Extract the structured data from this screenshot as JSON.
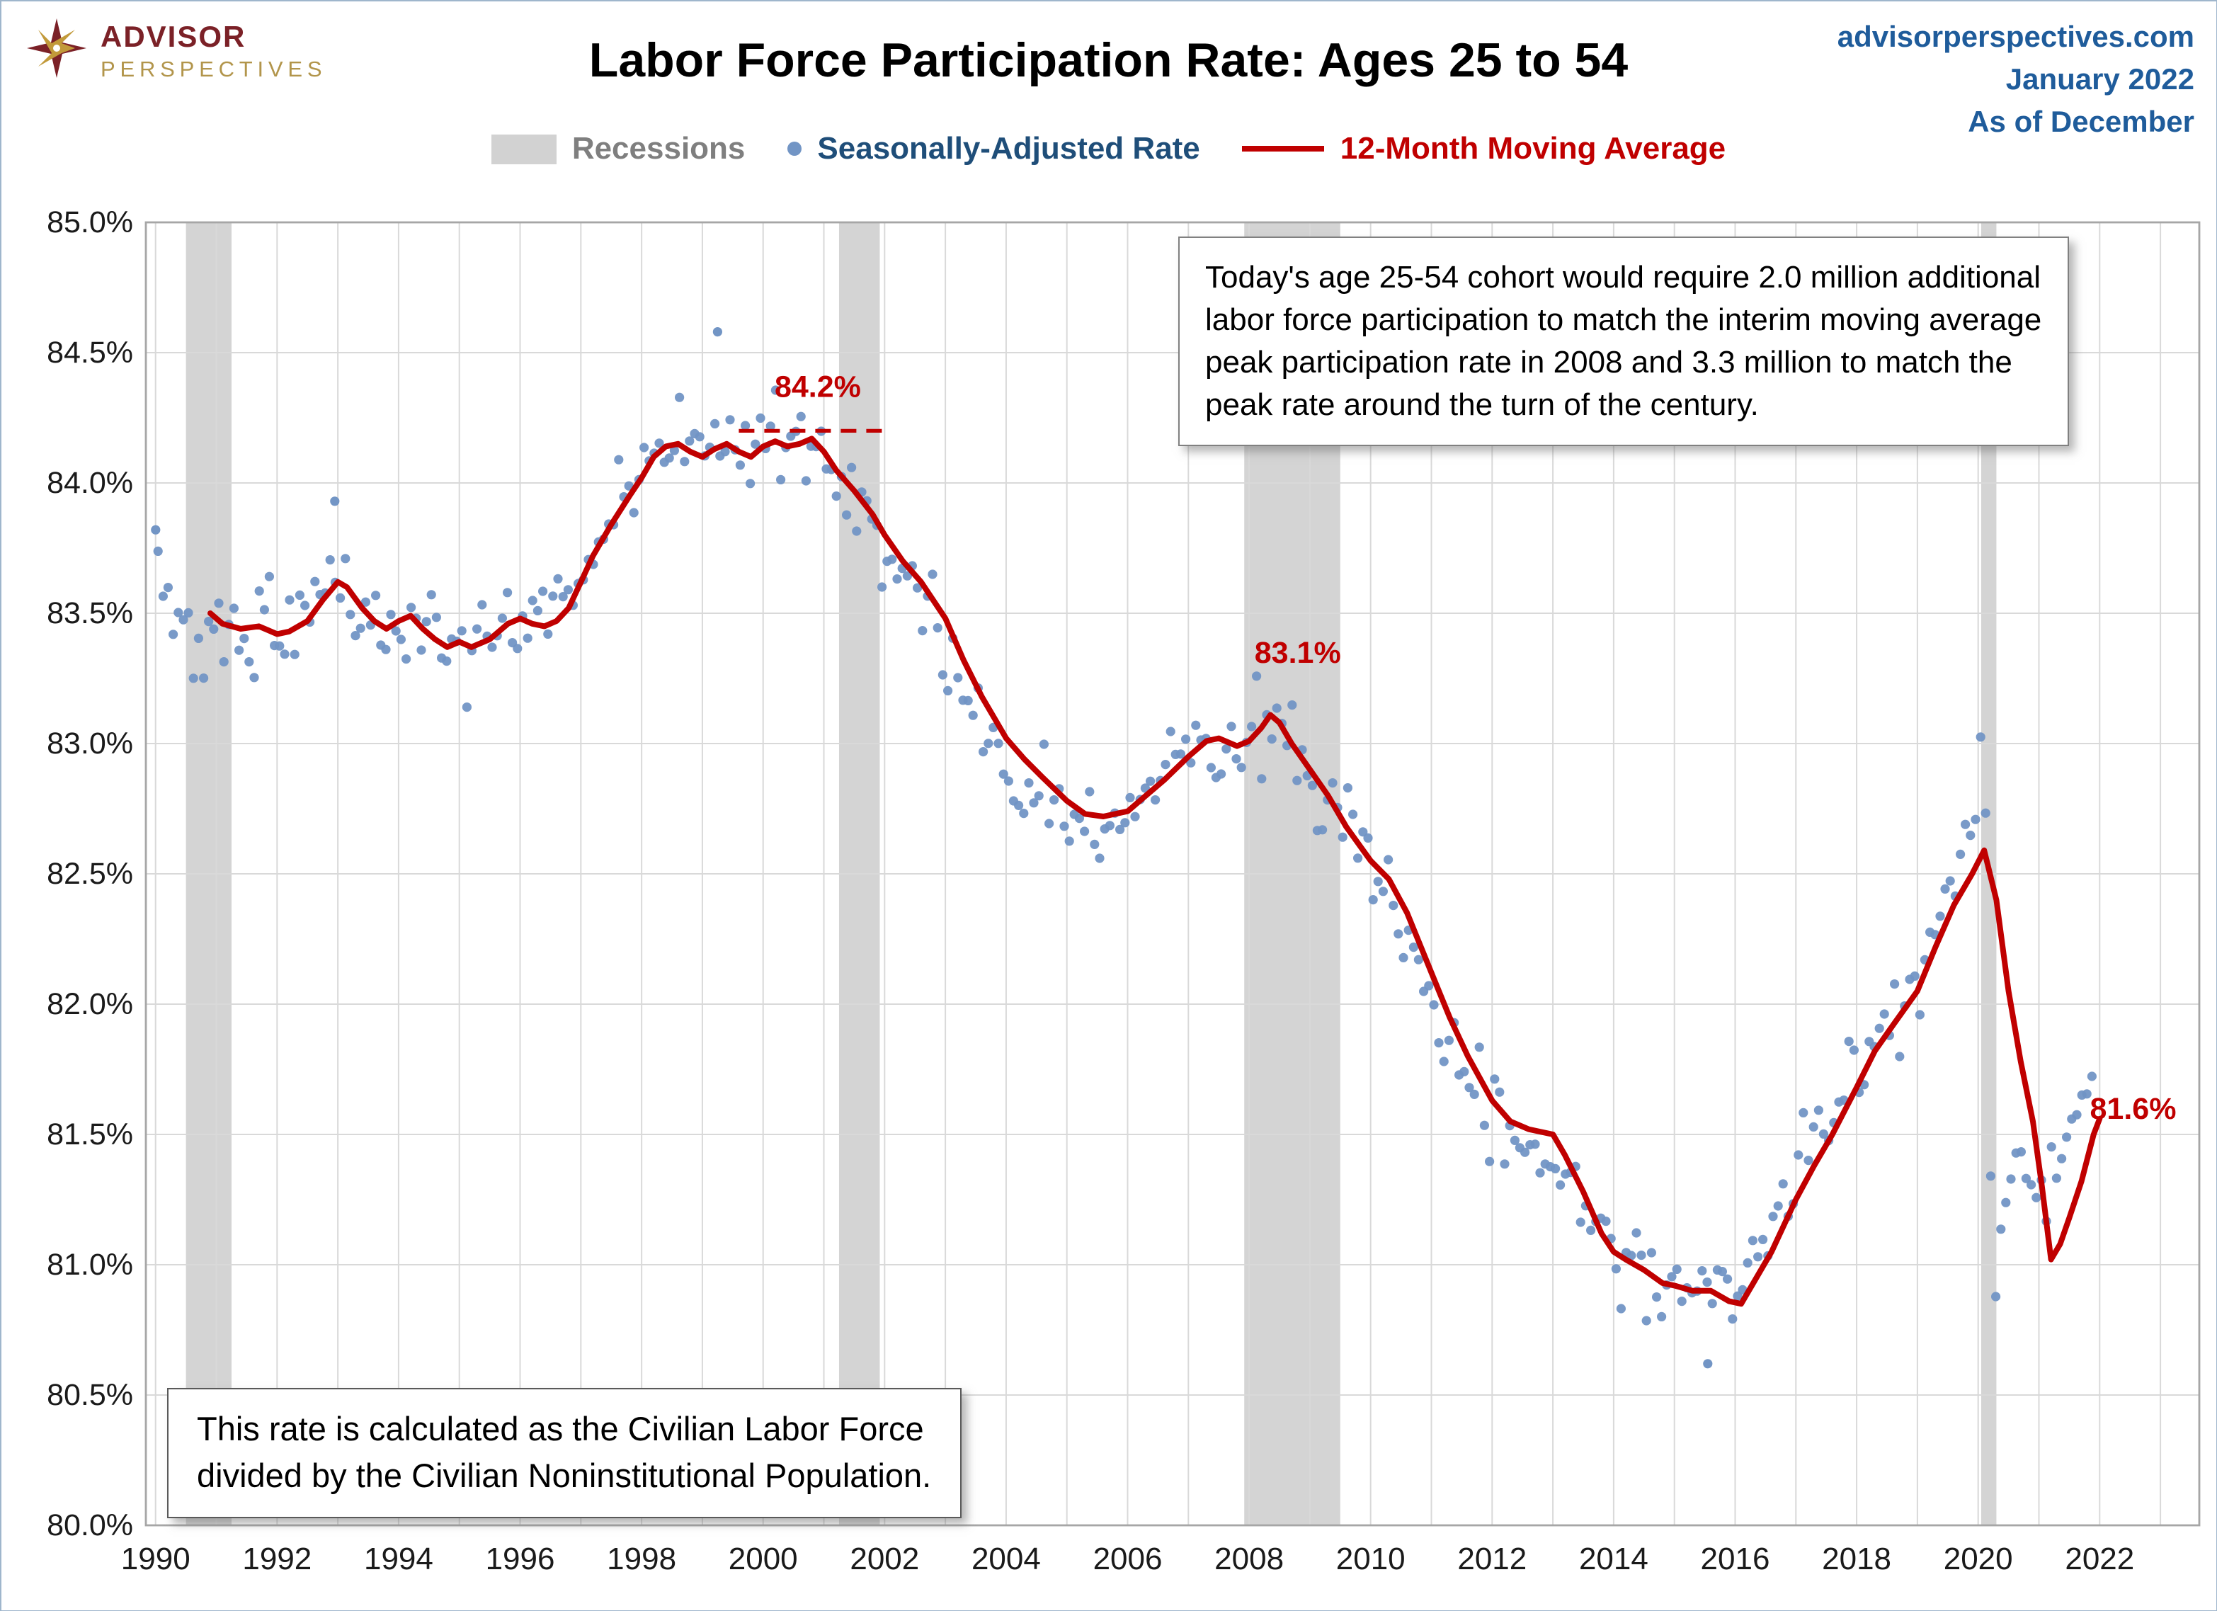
{
  "header": {
    "brand_top": "ADVISOR",
    "brand_bottom": "PERSPECTIVES",
    "title": "Labor Force Participation Rate: Ages 25 to 54",
    "site": "advisorperspectives.com",
    "issue_date": "January 2022",
    "as_of": "As of December"
  },
  "legend": [
    {
      "label": "Recessions"
    },
    {
      "label": "Seasonally-Adjusted Rate"
    },
    {
      "label": "12-Month Moving Average"
    }
  ],
  "callouts": {
    "note_top": "Today's age 25-54 cohort would require 2.0 million additional\nlabor force participation to match the interim moving average\npeak participation rate in 2008 and 3.3 million to match the\npeak rate around the turn of the century.",
    "note_bottom": "This rate is calculated as the Civilian Labor Force\ndivided by the Civilian Noninstitutional Population."
  },
  "chart_data": {
    "type": "line+scatter",
    "title": "Labor Force Participation Rate: Ages 25 to 54",
    "x_range": [
      1989.84,
      2023.64
    ],
    "y_range": [
      80.0,
      85.0
    ],
    "x_ticks": [
      1990,
      1992,
      1994,
      1996,
      1998,
      2000,
      2002,
      2004,
      2006,
      2008,
      2010,
      2012,
      2014,
      2016,
      2018,
      2020,
      2022
    ],
    "x_tick_labels": [
      "1990",
      "1992",
      "1994",
      "1996",
      "1998",
      "2000",
      "2002",
      "2004",
      "2006",
      "2008",
      "2010",
      "2012",
      "2014",
      "2016",
      "2018",
      "2020",
      "2022"
    ],
    "y_ticks": [
      80.0,
      80.5,
      81.0,
      81.5,
      82.0,
      82.5,
      83.0,
      83.5,
      84.0,
      84.5,
      85.0
    ],
    "y_tick_labels": [
      "80.0%",
      "80.5%",
      "81.0%",
      "81.5%",
      "82.0%",
      "82.5%",
      "83.0%",
      "83.5%",
      "84.0%",
      "84.5%",
      "85.0%"
    ],
    "grid_years": [
      1990,
      1991,
      1992,
      1993,
      1994,
      1995,
      1996,
      1997,
      1998,
      1999,
      2000,
      2001,
      2002,
      2003,
      2004,
      2005,
      2006,
      2007,
      2008,
      2009,
      2010,
      2011,
      2012,
      2013,
      2014,
      2015,
      2016,
      2017,
      2018,
      2019,
      2020,
      2021,
      2022,
      2023
    ],
    "recessions": [
      [
        1990.5,
        1991.25
      ],
      [
        2001.25,
        2001.92
      ],
      [
        2007.92,
        2009.5
      ],
      [
        2020.05,
        2020.3
      ]
    ],
    "ma_series": [
      [
        1990.9,
        83.5
      ],
      [
        1991.1,
        83.46
      ],
      [
        1991.4,
        83.44
      ],
      [
        1991.7,
        83.45
      ],
      [
        1992.0,
        83.42
      ],
      [
        1992.2,
        83.43
      ],
      [
        1992.5,
        83.47
      ],
      [
        1992.75,
        83.55
      ],
      [
        1993.0,
        83.62
      ],
      [
        1993.15,
        83.6
      ],
      [
        1993.4,
        83.52
      ],
      [
        1993.6,
        83.47
      ],
      [
        1993.8,
        83.44
      ],
      [
        1994.0,
        83.47
      ],
      [
        1994.2,
        83.49
      ],
      [
        1994.4,
        83.44
      ],
      [
        1994.6,
        83.4
      ],
      [
        1994.8,
        83.37
      ],
      [
        1995.0,
        83.39
      ],
      [
        1995.2,
        83.37
      ],
      [
        1995.5,
        83.4
      ],
      [
        1995.8,
        83.46
      ],
      [
        1996.0,
        83.48
      ],
      [
        1996.2,
        83.46
      ],
      [
        1996.4,
        83.45
      ],
      [
        1996.6,
        83.47
      ],
      [
        1996.8,
        83.52
      ],
      [
        1997.0,
        83.62
      ],
      [
        1997.2,
        83.72
      ],
      [
        1997.5,
        83.84
      ],
      [
        1997.8,
        83.95
      ],
      [
        1998.0,
        84.02
      ],
      [
        1998.2,
        84.1
      ],
      [
        1998.4,
        84.14
      ],
      [
        1998.6,
        84.15
      ],
      [
        1998.8,
        84.12
      ],
      [
        1999.0,
        84.1
      ],
      [
        1999.2,
        84.13
      ],
      [
        1999.4,
        84.15
      ],
      [
        1999.6,
        84.12
      ],
      [
        1999.8,
        84.1
      ],
      [
        2000.0,
        84.14
      ],
      [
        2000.2,
        84.16
      ],
      [
        2000.4,
        84.14
      ],
      [
        2000.6,
        84.15
      ],
      [
        2000.8,
        84.17
      ],
      [
        2001.0,
        84.12
      ],
      [
        2001.2,
        84.05
      ],
      [
        2001.5,
        83.97
      ],
      [
        2001.8,
        83.88
      ],
      [
        2002.0,
        83.8
      ],
      [
        2002.3,
        83.7
      ],
      [
        2002.6,
        83.62
      ],
      [
        2003.0,
        83.48
      ],
      [
        2003.3,
        83.32
      ],
      [
        2003.6,
        83.18
      ],
      [
        2004.0,
        83.02
      ],
      [
        2004.3,
        82.94
      ],
      [
        2004.6,
        82.87
      ],
      [
        2005.0,
        82.78
      ],
      [
        2005.3,
        82.73
      ],
      [
        2005.6,
        82.72
      ],
      [
        2006.0,
        82.74
      ],
      [
        2006.3,
        82.8
      ],
      [
        2006.6,
        82.86
      ],
      [
        2007.0,
        82.95
      ],
      [
        2007.3,
        83.01
      ],
      [
        2007.5,
        83.02
      ],
      [
        2007.8,
        82.99
      ],
      [
        2008.0,
        83.01
      ],
      [
        2008.2,
        83.06
      ],
      [
        2008.35,
        83.11
      ],
      [
        2008.5,
        83.08
      ],
      [
        2008.7,
        83.0
      ],
      [
        2009.0,
        82.9
      ],
      [
        2009.3,
        82.8
      ],
      [
        2009.6,
        82.68
      ],
      [
        2010.0,
        82.55
      ],
      [
        2010.3,
        82.48
      ],
      [
        2010.6,
        82.35
      ],
      [
        2011.0,
        82.12
      ],
      [
        2011.3,
        81.95
      ],
      [
        2011.6,
        81.8
      ],
      [
        2012.0,
        81.63
      ],
      [
        2012.3,
        81.55
      ],
      [
        2012.6,
        81.52
      ],
      [
        2013.0,
        81.5
      ],
      [
        2013.2,
        81.42
      ],
      [
        2013.5,
        81.28
      ],
      [
        2013.8,
        81.12
      ],
      [
        2014.0,
        81.05
      ],
      [
        2014.2,
        81.02
      ],
      [
        2014.5,
        80.98
      ],
      [
        2014.8,
        80.93
      ],
      [
        2015.0,
        80.92
      ],
      [
        2015.3,
        80.9
      ],
      [
        2015.6,
        80.9
      ],
      [
        2015.9,
        80.86
      ],
      [
        2016.1,
        80.85
      ],
      [
        2016.3,
        80.93
      ],
      [
        2016.6,
        81.05
      ],
      [
        2017.0,
        81.25
      ],
      [
        2017.3,
        81.38
      ],
      [
        2017.6,
        81.5
      ],
      [
        2018.0,
        81.68
      ],
      [
        2018.3,
        81.82
      ],
      [
        2018.6,
        81.92
      ],
      [
        2019.0,
        82.05
      ],
      [
        2019.3,
        82.22
      ],
      [
        2019.6,
        82.38
      ],
      [
        2019.9,
        82.5
      ],
      [
        2020.1,
        82.59
      ],
      [
        2020.3,
        82.4
      ],
      [
        2020.5,
        82.05
      ],
      [
        2020.7,
        81.78
      ],
      [
        2020.9,
        81.55
      ],
      [
        2021.05,
        81.3
      ],
      [
        2021.2,
        81.02
      ],
      [
        2021.35,
        81.08
      ],
      [
        2021.5,
        81.18
      ],
      [
        2021.7,
        81.32
      ],
      [
        2021.9,
        81.5
      ],
      [
        2022.0,
        81.56
      ]
    ],
    "dot_trend": [
      [
        1990.0,
        83.65
      ],
      [
        1990.2,
        83.55
      ],
      [
        1990.5,
        83.45
      ],
      [
        1991.0,
        83.42
      ],
      [
        1992.0,
        83.44
      ],
      [
        1992.6,
        83.55
      ],
      [
        1992.9,
        83.62
      ],
      [
        1993.3,
        83.48
      ],
      [
        1993.7,
        83.44
      ],
      [
        1994.1,
        83.48
      ],
      [
        1994.7,
        83.36
      ],
      [
        1995.2,
        83.38
      ],
      [
        1995.7,
        83.46
      ],
      [
        1996.3,
        83.46
      ],
      [
        1996.7,
        83.55
      ],
      [
        1997.0,
        83.7
      ],
      [
        1997.4,
        83.85
      ],
      [
        1997.8,
        84.0
      ],
      [
        1998.1,
        84.12
      ],
      [
        1998.5,
        84.15
      ],
      [
        1999.0,
        84.11
      ],
      [
        1999.5,
        84.14
      ],
      [
        2000.0,
        84.16
      ],
      [
        2000.7,
        84.18
      ],
      [
        2001.0,
        84.08
      ],
      [
        2001.5,
        83.92
      ],
      [
        2002.0,
        83.75
      ],
      [
        2002.5,
        83.62
      ],
      [
        2003.0,
        83.4
      ],
      [
        2003.5,
        83.18
      ],
      [
        2004.0,
        82.98
      ],
      [
        2004.5,
        82.84
      ],
      [
        2005.0,
        82.74
      ],
      [
        2005.5,
        82.7
      ],
      [
        2006.0,
        82.76
      ],
      [
        2006.5,
        82.86
      ],
      [
        2007.0,
        82.98
      ],
      [
        2007.4,
        83.02
      ],
      [
        2007.8,
        83.0
      ],
      [
        2008.3,
        83.08
      ],
      [
        2008.6,
        83.02
      ],
      [
        2009.0,
        82.85
      ],
      [
        2009.5,
        82.7
      ],
      [
        2010.0,
        82.5
      ],
      [
        2010.5,
        82.32
      ],
      [
        2011.0,
        82.0
      ],
      [
        2011.5,
        81.75
      ],
      [
        2012.0,
        81.58
      ],
      [
        2012.5,
        81.52
      ],
      [
        2013.0,
        81.45
      ],
      [
        2013.5,
        81.2
      ],
      [
        2014.0,
        81.02
      ],
      [
        2014.5,
        80.95
      ],
      [
        2015.0,
        80.9
      ],
      [
        2015.5,
        80.88
      ],
      [
        2016.0,
        80.88
      ],
      [
        2016.5,
        81.08
      ],
      [
        2017.0,
        81.32
      ],
      [
        2017.5,
        81.55
      ],
      [
        2018.0,
        81.75
      ],
      [
        2018.5,
        81.92
      ],
      [
        2019.0,
        82.1
      ],
      [
        2019.5,
        82.35
      ],
      [
        2019.9,
        82.8
      ],
      [
        2020.1,
        83.05
      ],
      [
        2020.25,
        80.75
      ],
      [
        2020.4,
        81.15
      ],
      [
        2020.6,
        81.3
      ],
      [
        2020.9,
        81.3
      ],
      [
        2021.2,
        81.35
      ],
      [
        2021.5,
        81.55
      ],
      [
        2021.8,
        81.75
      ],
      [
        2021.95,
        81.88
      ]
    ],
    "extra_dots": [
      [
        1990.0,
        83.82
      ],
      [
        1992.95,
        83.93
      ],
      [
        1999.25,
        84.58
      ],
      [
        2015.55,
        80.62
      ]
    ],
    "dot_noise_sd": 0.085,
    "dots_per_year": 12,
    "dot_start": 1990.0,
    "dot_end": 2021.95,
    "annotations": [
      {
        "text": "84.2%",
        "x": 2000.9,
        "y": 84.33,
        "dash": {
          "y": 84.2,
          "x1": 1999.6,
          "x2": 2002.1
        }
      },
      {
        "text": "83.1%",
        "x": 2008.8,
        "y": 83.31
      },
      {
        "text": "81.6%",
        "x": 2022.55,
        "y": 81.56
      }
    ],
    "colors": {
      "dot": "#7295C5",
      "line": "#C00000",
      "recession": "#D4D4D4",
      "grid": "#D9D9D9",
      "plot_border": "#A6A6A6",
      "tick_text": "#1A1A1A",
      "annotation": "#C00000"
    },
    "legend_position": "top",
    "grid": true
  }
}
